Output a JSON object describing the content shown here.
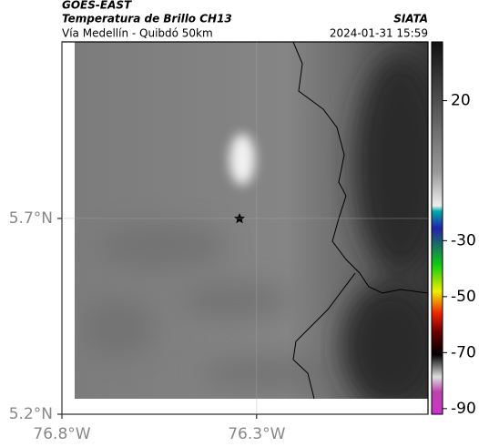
{
  "header": {
    "source": "GOES-EAST",
    "product": "Temperatura de Brillo CH13",
    "agency": "SIATA",
    "route": "Vía Medellín - Quibdó 50km",
    "timestamp": "2024-01-31 15:59"
  },
  "map": {
    "xlim": [
      -76.8,
      -75.86
    ],
    "ylim": [
      5.2,
      6.151
    ],
    "xticks": [
      {
        "value": -76.8,
        "label": "76.8°W"
      },
      {
        "value": -76.3,
        "label": "76.3°W"
      }
    ],
    "yticks": [
      {
        "value": 5.2,
        "label": "5.2°N"
      },
      {
        "value": 5.7,
        "label": "5.7°N"
      }
    ],
    "grid": true
  },
  "colorbar": {
    "lim": [
      -92,
      41
    ],
    "ticks": [
      20,
      -30,
      -50,
      -70,
      -90
    ]
  }
}
